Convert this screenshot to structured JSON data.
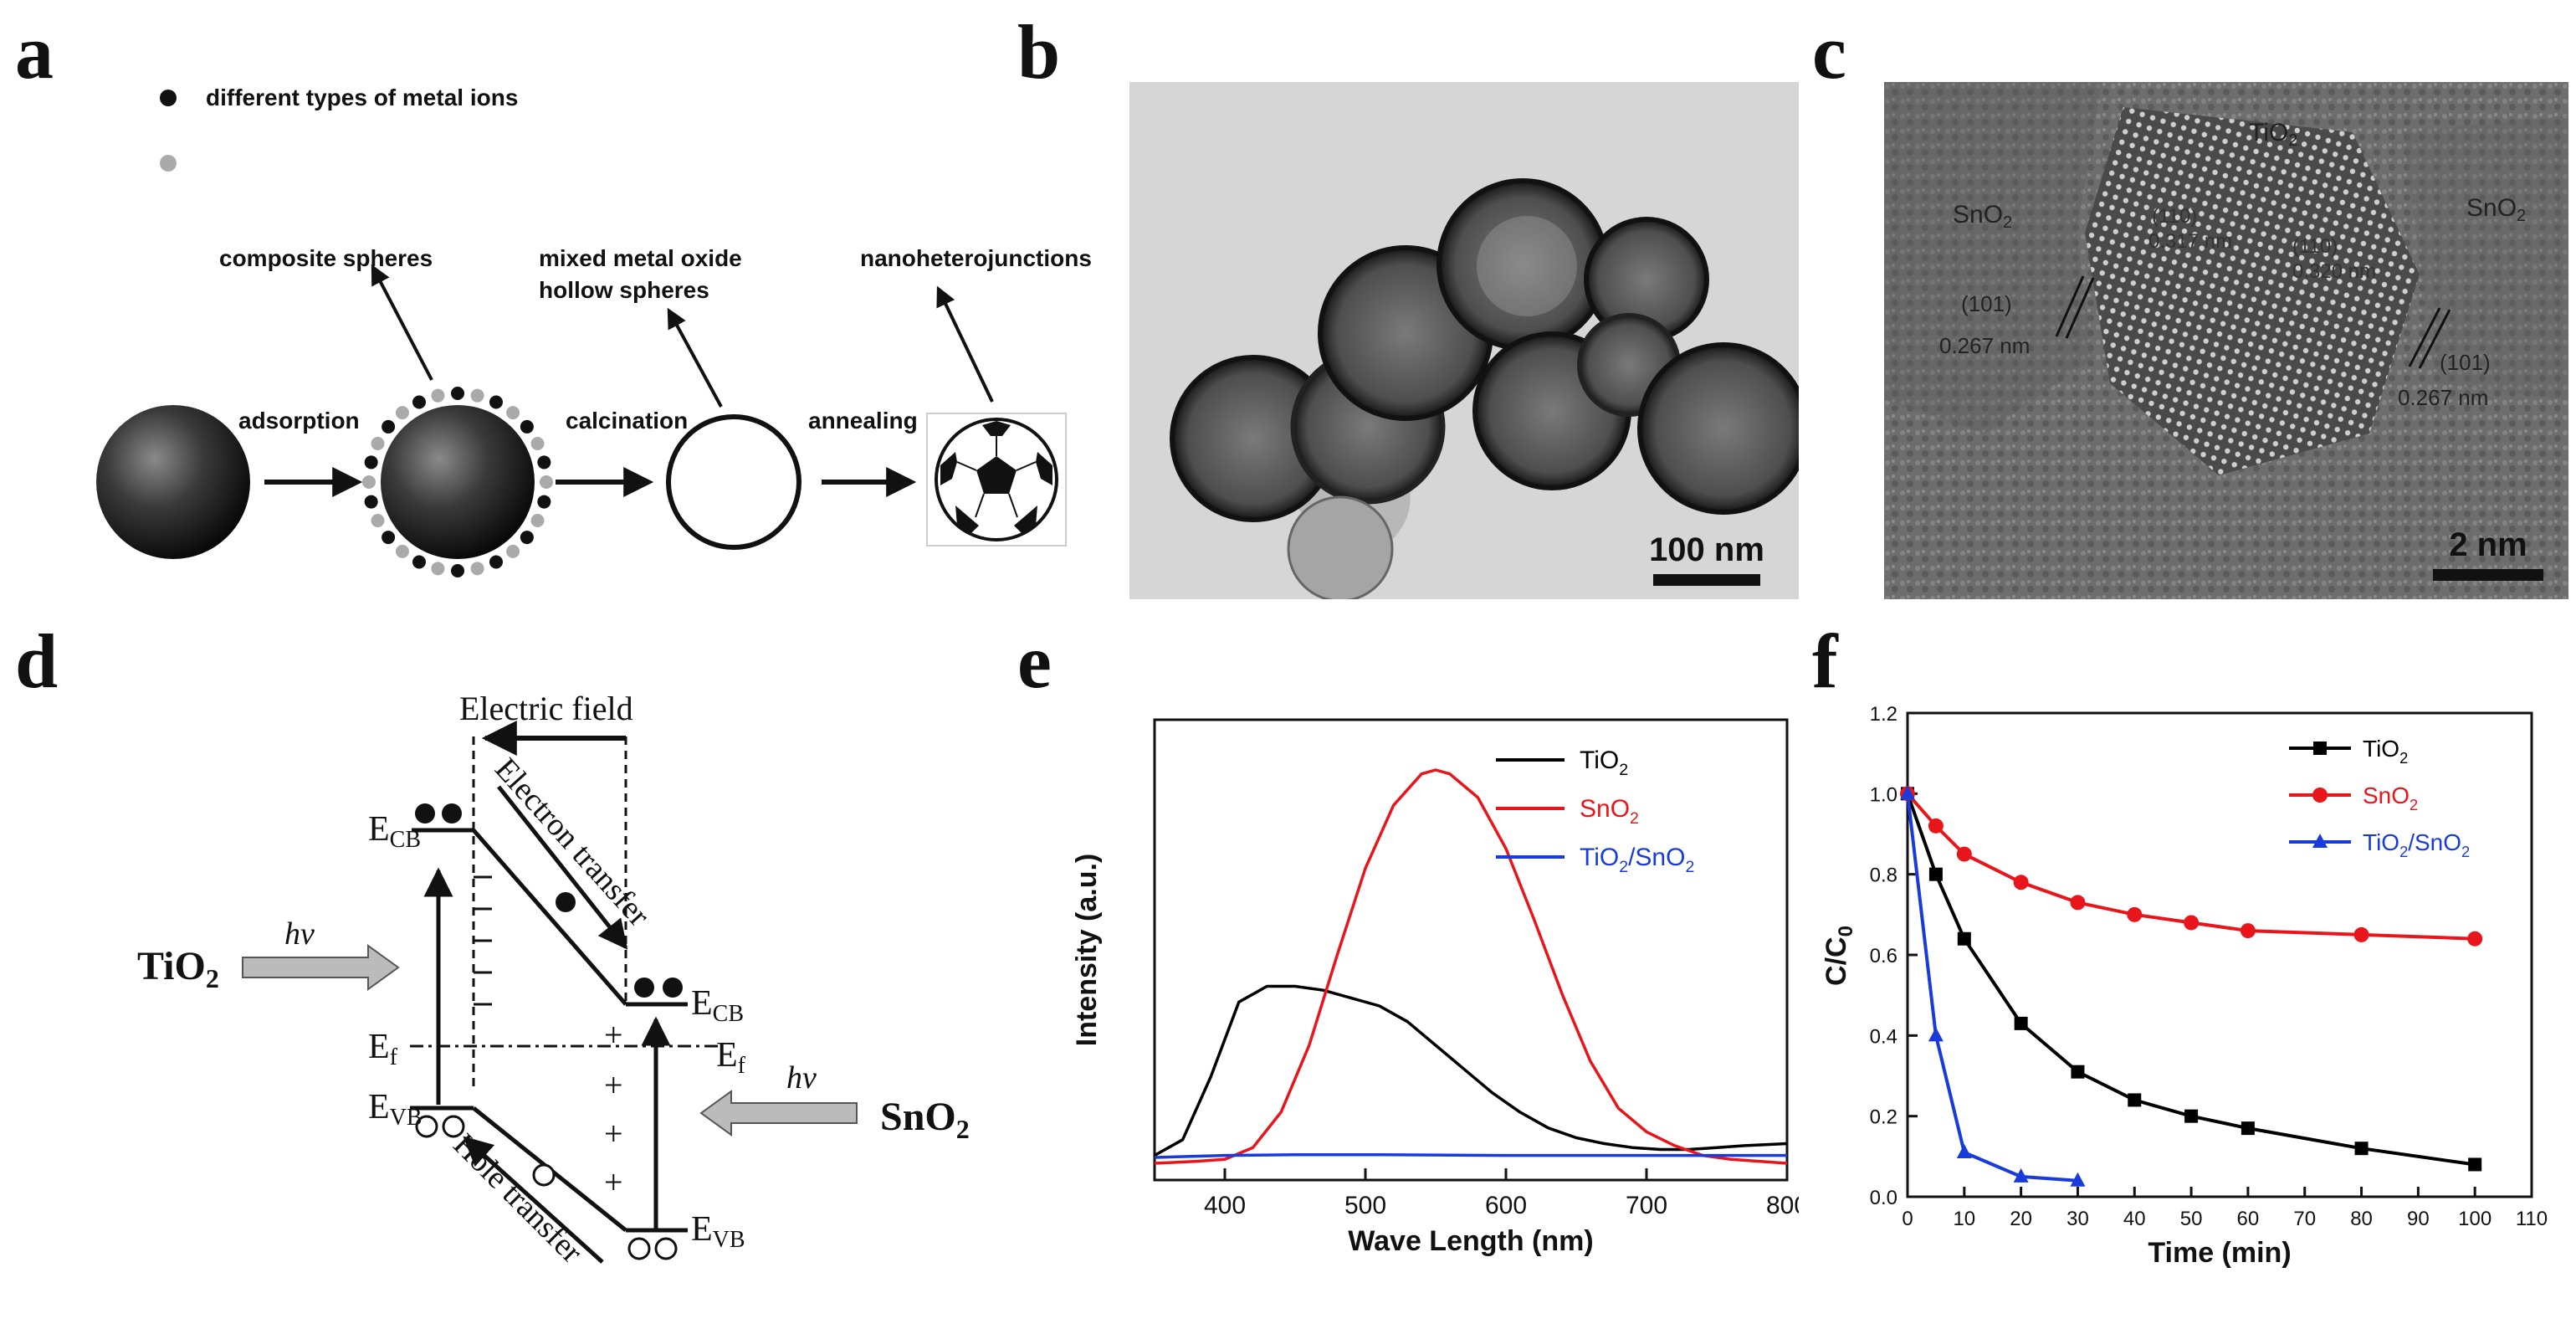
{
  "panels": {
    "a": "a",
    "b": "b",
    "c": "c",
    "d": "d",
    "e": "e",
    "f": "f"
  },
  "panel_a": {
    "legend_label": "different types of metal ions",
    "label_composite": "composite spheres",
    "label_mixed_1": "mixed metal oxide",
    "label_mixed_2": "hollow spheres",
    "label_nano": "nanoheterojunctions",
    "step_adsorption": "adsorption",
    "step_calcination": "calcination",
    "step_annealing": "annealing"
  },
  "panel_b": {
    "scale_bar": "100 nm"
  },
  "panel_c": {
    "scale_bar": "2 nm",
    "tio2": "TiO",
    "tio2_sub": "2",
    "sno2_left": "SnO",
    "sno2_left_sub": "2",
    "sno2_right": "SnO",
    "sno2_right_sub": "2",
    "plane_left": "(101)",
    "d_left": "0.267 nm",
    "plane_right": "(101)",
    "d_right": "0.267 nm",
    "plane_mid1": "(110)",
    "d_mid1": "0.317 nm",
    "plane_mid2": "(110)",
    "d_mid2": "0.320 nm"
  },
  "panel_d": {
    "electric_field": "Electric field",
    "electron_transfer": "Electron transfer",
    "hole_transfer": "Hole  transfer",
    "tio2": "TiO",
    "tio2_sub": "2",
    "sno2": "SnO",
    "sno2_sub": "2",
    "hv_left": "hv",
    "hv_right": "hv",
    "e": "E",
    "cb": "CB",
    "vb": "VB",
    "f": "f"
  },
  "chart_data": [
    {
      "type": "line",
      "xlabel": "Wave Length (nm)",
      "ylabel": "Intensity (a.u.)",
      "xlim": [
        350,
        800
      ],
      "xticks": [
        400,
        500,
        600,
        700,
        800
      ],
      "series": [
        {
          "name": "TiO2",
          "legend_base": "TiO",
          "legend_sub": "2",
          "color": "#000000",
          "x": [
            350,
            370,
            390,
            410,
            430,
            450,
            470,
            490,
            510,
            530,
            550,
            570,
            590,
            610,
            630,
            650,
            670,
            690,
            710,
            730,
            750,
            770,
            800
          ],
          "y": [
            0.02,
            0.06,
            0.22,
            0.41,
            0.45,
            0.45,
            0.44,
            0.42,
            0.4,
            0.36,
            0.3,
            0.24,
            0.18,
            0.13,
            0.09,
            0.065,
            0.05,
            0.04,
            0.035,
            0.035,
            0.04,
            0.045,
            0.05
          ]
        },
        {
          "name": "SnO2",
          "legend_base": "SnO",
          "legend_sub": "2",
          "color": "#e8161b",
          "x": [
            350,
            380,
            400,
            420,
            440,
            460,
            480,
            500,
            520,
            540,
            550,
            560,
            580,
            600,
            620,
            640,
            660,
            680,
            700,
            720,
            740,
            760,
            780,
            800
          ],
          "y": [
            0.0,
            0.005,
            0.01,
            0.04,
            0.13,
            0.3,
            0.53,
            0.75,
            0.91,
            0.99,
            1.0,
            0.99,
            0.93,
            0.8,
            0.62,
            0.43,
            0.26,
            0.14,
            0.08,
            0.045,
            0.02,
            0.01,
            0.005,
            0.0
          ]
        },
        {
          "name": "TiO2/SnO2",
          "legend_base": "TiO",
          "legend_sub": "2",
          "legend_rest": "/SnO",
          "legend_sub2": "2",
          "color": "#1a3bdc",
          "x": [
            350,
            400,
            450,
            500,
            550,
            600,
            650,
            700,
            750,
            800
          ],
          "y": [
            0.015,
            0.02,
            0.022,
            0.022,
            0.021,
            0.02,
            0.02,
            0.02,
            0.02,
            0.02
          ]
        }
      ]
    },
    {
      "type": "line",
      "xlabel": "Time (min)",
      "ylabel": "C/C",
      "ylabel_sub": "0",
      "xlim": [
        0,
        110
      ],
      "ylim": [
        0,
        1.2
      ],
      "xticks": [
        0,
        10,
        20,
        30,
        40,
        50,
        60,
        70,
        80,
        90,
        100,
        110
      ],
      "yticks": [
        "0.0",
        "0.2",
        "0.4",
        "0.6",
        "0.8",
        "1.0",
        "1.2"
      ],
      "series": [
        {
          "name": "TiO2",
          "legend_base": "TiO",
          "legend_sub": "2",
          "color": "#000000",
          "marker": "square",
          "x": [
            0,
            5,
            10,
            20,
            30,
            40,
            50,
            60,
            80,
            100
          ],
          "y": [
            1.0,
            0.8,
            0.64,
            0.43,
            0.31,
            0.24,
            0.2,
            0.17,
            0.12,
            0.08
          ]
        },
        {
          "name": "SnO2",
          "legend_base": "SnO",
          "legend_sub": "2",
          "color": "#e8161b",
          "marker": "circle",
          "x": [
            0,
            5,
            10,
            20,
            30,
            40,
            50,
            60,
            80,
            100
          ],
          "y": [
            1.0,
            0.92,
            0.85,
            0.78,
            0.73,
            0.7,
            0.68,
            0.66,
            0.65,
            0.64
          ]
        },
        {
          "name": "TiO2/SnO2",
          "legend_base": "TiO",
          "legend_sub": "2",
          "legend_rest": "/SnO",
          "legend_sub2": "2",
          "color": "#1a3bdc",
          "marker": "triangle",
          "x": [
            0,
            5,
            10,
            20,
            30
          ],
          "y": [
            1.0,
            0.4,
            0.11,
            0.05,
            0.04
          ]
        }
      ]
    }
  ]
}
